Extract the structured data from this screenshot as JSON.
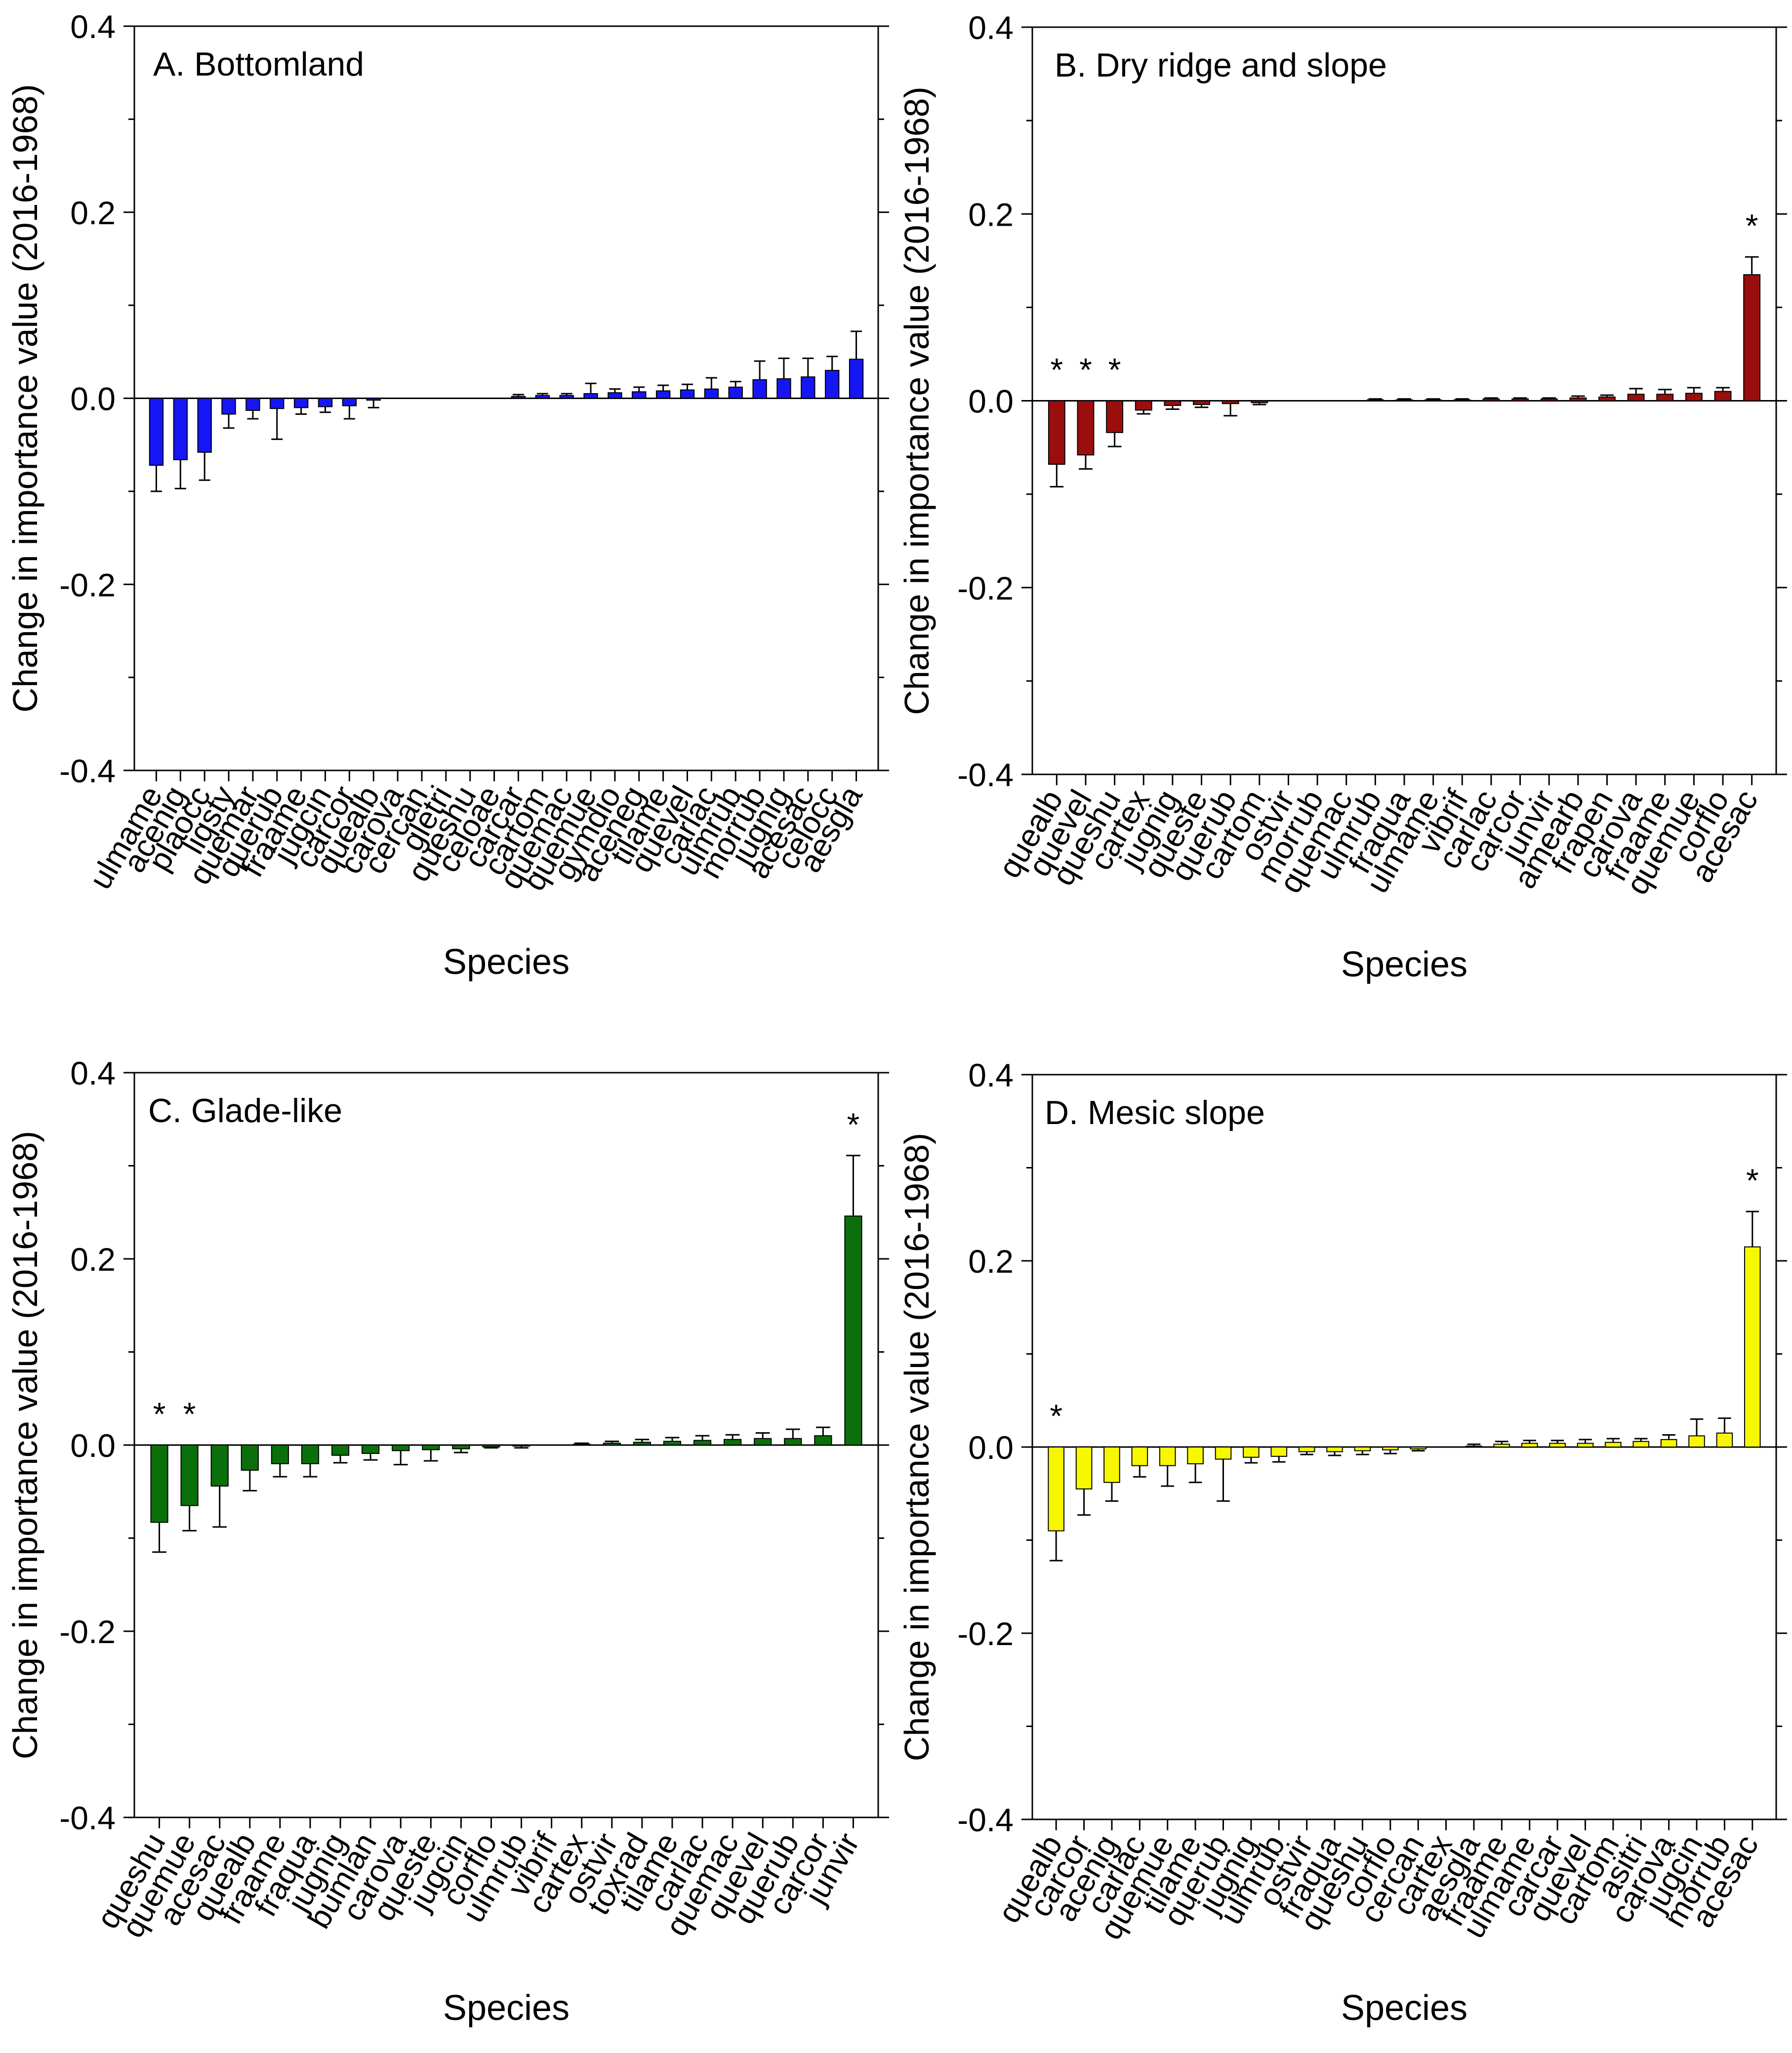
{
  "figure": {
    "x_label": "Species",
    "y_label": "Change in importance value (2016-1968)"
  },
  "chart_data": [
    {
      "type": "bar",
      "title": "A. Bottomland",
      "color": "#1616f5",
      "ylim": [
        -0.4,
        0.4
      ],
      "yticks": [
        -0.4,
        -0.2,
        0.0,
        0.2,
        0.4
      ],
      "ytick_labels": [
        "-0.4",
        "-0.2",
        "0.0",
        "0.2",
        "0.4"
      ],
      "xlabel": "Species",
      "ylabel": "Change in importance value (2016-1968)",
      "categories": [
        "ulmame",
        "acenig",
        "plaocc",
        "liqsty",
        "quemar",
        "querub",
        "fraame",
        "jugcin",
        "carcor",
        "quealb",
        "carova",
        "cercan",
        "gletri",
        "queshu",
        "celoae",
        "carcar",
        "cartom",
        "quemac",
        "quemue",
        "gymdio",
        "aceneg",
        "tilame",
        "quevel",
        "carlac",
        "ulmrub",
        "morrub",
        "jugnig",
        "acesac",
        "celocc",
        "aesgla"
      ],
      "values": [
        -0.072,
        -0.066,
        -0.058,
        -0.017,
        -0.013,
        -0.011,
        -0.01,
        -0.009,
        -0.008,
        -0.002,
        0,
        0,
        0,
        0,
        0,
        0.002,
        0.003,
        0.003,
        0.005,
        0.006,
        0.007,
        0.008,
        0.009,
        0.01,
        0.012,
        0.02,
        0.021,
        0.023,
        0.03,
        0.042
      ],
      "errors": [
        0.028,
        0.031,
        0.03,
        0.015,
        0.009,
        0.033,
        0.007,
        0.006,
        0.014,
        0.008,
        0,
        0,
        0,
        0,
        0,
        0.002,
        0.002,
        0.002,
        0.011,
        0.004,
        0.005,
        0.006,
        0.006,
        0.012,
        0.006,
        0.02,
        0.022,
        0.02,
        0.015,
        0.03
      ],
      "significant": []
    },
    {
      "type": "bar",
      "title": "B. Dry ridge and slope",
      "color": "#9b0e0e",
      "ylim": [
        -0.4,
        0.4
      ],
      "yticks": [
        -0.4,
        -0.2,
        0.0,
        0.2,
        0.4
      ],
      "ytick_labels": [
        "-0.4",
        "-0.2",
        "0.0",
        "0.2",
        "0.4"
      ],
      "xlabel": "Species",
      "ylabel": "Change in importance value (2016-1968)",
      "categories": [
        "quealb",
        "quevel",
        "queshu",
        "cartex",
        "jugnig",
        "queste",
        "querub",
        "cartom",
        "ostvir",
        "morrub",
        "quemac",
        "ulmrub",
        "fraqua",
        "ulmame",
        "vibrif",
        "carlac",
        "carcor",
        "junvir",
        "amearb",
        "frapen",
        "carova",
        "fraame",
        "quemue",
        "corflo",
        "acesac"
      ],
      "values": [
        -0.068,
        -0.058,
        -0.034,
        -0.01,
        -0.005,
        -0.004,
        -0.003,
        -0.002,
        0,
        0,
        0,
        0.001,
        0.001,
        0.001,
        0.001,
        0.002,
        0.002,
        0.002,
        0.003,
        0.004,
        0.007,
        0.007,
        0.008,
        0.01,
        0.135
      ],
      "errors": [
        0.024,
        0.015,
        0.015,
        0.004,
        0.004,
        0.003,
        0.013,
        0.002,
        0,
        0,
        0,
        0.001,
        0.001,
        0.001,
        0.001,
        0.001,
        0.001,
        0.001,
        0.002,
        0.002,
        0.006,
        0.005,
        0.006,
        0.004,
        0.019
      ],
      "significant": [
        "quealb",
        "quevel",
        "queshu",
        "acesac"
      ]
    },
    {
      "type": "bar",
      "title": "C. Glade-like",
      "color": "#0b700b",
      "ylim": [
        -0.4,
        0.4
      ],
      "yticks": [
        -0.4,
        -0.2,
        0.0,
        0.2,
        0.4
      ],
      "ytick_labels": [
        "-0.4",
        "-0.2",
        "0.0",
        "0.2",
        "0.4"
      ],
      "xlabel": "Species",
      "ylabel": "Change in importance value (2016-1968)",
      "categories": [
        "queshu",
        "quemue",
        "acesac",
        "quealb",
        "fraame",
        "fraqua",
        "jugnig",
        "bumlan",
        "carova",
        "queste",
        "jugcin",
        "corflo",
        "ulmrub",
        "vibrif",
        "cartex",
        "ostvir",
        "toxrad",
        "tilame",
        "carlac",
        "quemac",
        "quevel",
        "querub",
        "carcor",
        "junvir"
      ],
      "values": [
        -0.083,
        -0.065,
        -0.044,
        -0.027,
        -0.02,
        -0.02,
        -0.011,
        -0.009,
        -0.006,
        -0.005,
        -0.004,
        -0.002,
        -0.001,
        0,
        0.001,
        0.002,
        0.003,
        0.004,
        0.005,
        0.006,
        0.007,
        0.007,
        0.01,
        0.246
      ],
      "errors": [
        0.032,
        0.027,
        0.044,
        0.022,
        0.014,
        0.014,
        0.008,
        0.007,
        0.015,
        0.012,
        0.004,
        0.001,
        0.002,
        0,
        0.001,
        0.002,
        0.003,
        0.004,
        0.005,
        0.005,
        0.006,
        0.01,
        0.009,
        0.065
      ],
      "significant": [
        "queshu",
        "quemue",
        "junvir"
      ]
    },
    {
      "type": "bar",
      "title": "D. Mesic slope",
      "color": "#f7f700",
      "ylim": [
        -0.4,
        0.4
      ],
      "yticks": [
        -0.4,
        -0.2,
        0.0,
        0.2,
        0.4
      ],
      "ytick_labels": [
        "-0.4",
        "-0.2",
        "0.0",
        "0.2",
        "0.4"
      ],
      "xlabel": "Species",
      "ylabel": "Change in importance value (2016-1968)",
      "categories": [
        "quealb",
        "carcor",
        "acenig",
        "carlac",
        "quemue",
        "tilame",
        "querub",
        "jugnig",
        "ulmrub",
        "ostvir",
        "fraqua",
        "queshu",
        "corflo",
        "cercan",
        "cartex",
        "aesgla",
        "fraame",
        "ulmame",
        "carcar",
        "quevel",
        "cartom",
        "asitri",
        "carova",
        "jugcin",
        "morrub",
        "acesac"
      ],
      "values": [
        -0.09,
        -0.045,
        -0.038,
        -0.02,
        -0.02,
        -0.018,
        -0.013,
        -0.011,
        -0.01,
        -0.005,
        -0.005,
        -0.004,
        -0.003,
        -0.002,
        0,
        0.001,
        0.003,
        0.004,
        0.004,
        0.004,
        0.005,
        0.006,
        0.008,
        0.012,
        0.015,
        0.215
      ],
      "errors": [
        0.032,
        0.028,
        0.02,
        0.012,
        0.022,
        0.02,
        0.045,
        0.006,
        0.006,
        0.003,
        0.004,
        0.004,
        0.004,
        0.002,
        0,
        0.002,
        0.003,
        0.003,
        0.003,
        0.004,
        0.004,
        0.003,
        0.005,
        0.018,
        0.016,
        0.038
      ],
      "significant": [
        "quealb",
        "acesac"
      ]
    }
  ]
}
